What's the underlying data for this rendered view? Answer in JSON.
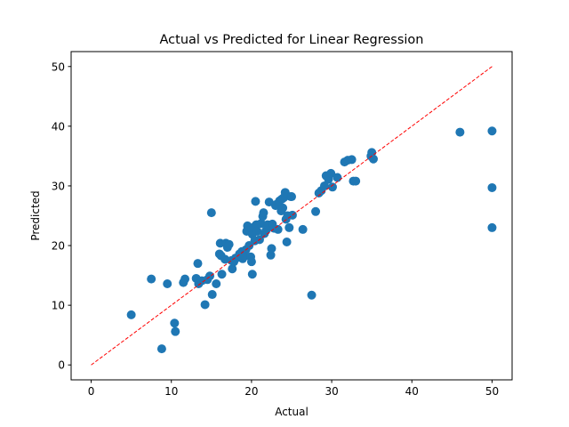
{
  "chart_data": {
    "type": "scatter",
    "title": "Actual vs Predicted for Linear Regression",
    "xlabel": "Actual",
    "ylabel": "Predicted",
    "xlim": [
      -2.5,
      52.5
    ],
    "ylim": [
      -2.5,
      52.5
    ],
    "xticks": [
      0,
      10,
      20,
      30,
      40,
      50
    ],
    "yticks": [
      0,
      10,
      20,
      30,
      40,
      50
    ],
    "grid": false,
    "point_color": "#1f77b4",
    "reference_line": {
      "x": [
        0,
        50
      ],
      "y": [
        0,
        50
      ],
      "color": "#ff0000",
      "style": "dashed"
    },
    "points": [
      [
        5.0,
        8.4
      ],
      [
        7.5,
        14.4
      ],
      [
        8.8,
        2.7
      ],
      [
        9.5,
        13.6
      ],
      [
        10.4,
        7.0
      ],
      [
        10.5,
        5.6
      ],
      [
        11.5,
        13.8
      ],
      [
        11.7,
        14.4
      ],
      [
        13.1,
        14.5
      ],
      [
        13.3,
        17.0
      ],
      [
        13.4,
        13.6
      ],
      [
        13.8,
        14.1
      ],
      [
        14.2,
        10.1
      ],
      [
        14.5,
        14.3
      ],
      [
        14.8,
        14.9
      ],
      [
        15.0,
        25.5
      ],
      [
        15.1,
        11.8
      ],
      [
        15.6,
        13.6
      ],
      [
        16.0,
        18.6
      ],
      [
        16.1,
        20.4
      ],
      [
        16.2,
        18.3
      ],
      [
        16.3,
        15.2
      ],
      [
        16.7,
        17.7
      ],
      [
        16.8,
        20.4
      ],
      [
        17.0,
        19.7
      ],
      [
        17.2,
        20.2
      ],
      [
        17.5,
        17.5
      ],
      [
        17.6,
        16.1
      ],
      [
        17.8,
        17.3
      ],
      [
        18.0,
        17.9
      ],
      [
        18.3,
        18.0
      ],
      [
        18.5,
        18.6
      ],
      [
        18.8,
        19.0
      ],
      [
        18.9,
        17.8
      ],
      [
        19.1,
        18.2
      ],
      [
        19.3,
        19.3
      ],
      [
        19.4,
        22.4
      ],
      [
        19.5,
        23.3
      ],
      [
        19.7,
        20.0
      ],
      [
        19.9,
        18.1
      ],
      [
        20.0,
        17.3
      ],
      [
        20.1,
        15.2
      ],
      [
        20.0,
        22.8
      ],
      [
        20.1,
        21.9
      ],
      [
        20.3,
        23.1
      ],
      [
        20.4,
        20.8
      ],
      [
        20.5,
        27.4
      ],
      [
        20.6,
        23.5
      ],
      [
        20.7,
        22.4
      ],
      [
        21.0,
        21.0
      ],
      [
        21.2,
        23.7
      ],
      [
        21.4,
        24.9
      ],
      [
        21.5,
        25.5
      ],
      [
        21.6,
        22.0
      ],
      [
        21.8,
        22.5
      ],
      [
        22.0,
        23.5
      ],
      [
        22.2,
        27.3
      ],
      [
        22.4,
        18.4
      ],
      [
        22.5,
        19.5
      ],
      [
        22.6,
        23.6
      ],
      [
        22.8,
        22.9
      ],
      [
        23.0,
        26.7
      ],
      [
        23.1,
        26.9
      ],
      [
        23.3,
        22.7
      ],
      [
        23.5,
        27.5
      ],
      [
        23.7,
        25.8
      ],
      [
        23.8,
        27.8
      ],
      [
        23.9,
        26.3
      ],
      [
        24.0,
        28.0
      ],
      [
        24.2,
        28.9
      ],
      [
        24.3,
        24.4
      ],
      [
        24.4,
        20.6
      ],
      [
        24.5,
        25.0
      ],
      [
        24.7,
        23.0
      ],
      [
        24.9,
        28.2
      ],
      [
        25.0,
        28.2
      ],
      [
        25.1,
        25.1
      ],
      [
        26.4,
        22.7
      ],
      [
        27.5,
        11.7
      ],
      [
        28.0,
        25.7
      ],
      [
        28.4,
        28.8
      ],
      [
        28.7,
        29.2
      ],
      [
        29.1,
        30.0
      ],
      [
        29.3,
        31.7
      ],
      [
        29.6,
        31.1
      ],
      [
        29.9,
        32.1
      ],
      [
        30.1,
        29.8
      ],
      [
        30.7,
        31.4
      ],
      [
        31.6,
        34.0
      ],
      [
        32.0,
        34.3
      ],
      [
        32.5,
        34.4
      ],
      [
        32.7,
        30.8
      ],
      [
        33.0,
        30.8
      ],
      [
        34.9,
        35.0
      ],
      [
        35.0,
        35.6
      ],
      [
        35.2,
        34.5
      ],
      [
        46.0,
        39.0
      ],
      [
        50.0,
        39.2
      ],
      [
        50.0,
        29.7
      ],
      [
        50.0,
        23.0
      ]
    ]
  }
}
